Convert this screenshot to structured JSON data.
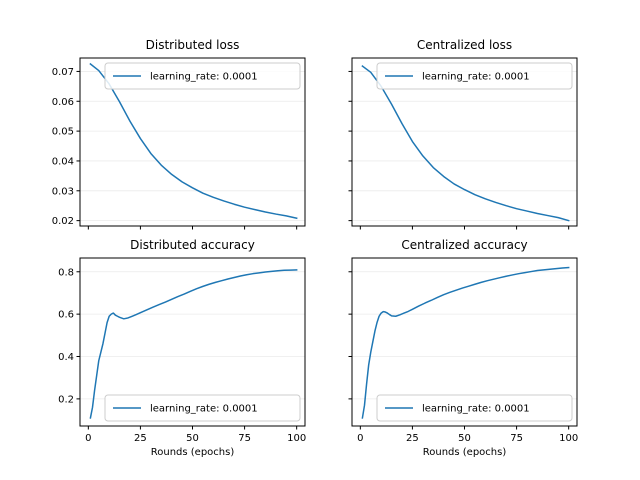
{
  "colors": {
    "series": "#1f77b4",
    "grid": "#ebebeb"
  },
  "chart_data": [
    {
      "type": "line",
      "title": "Distributed loss",
      "xlabel": "",
      "xlim": [
        -4,
        104
      ],
      "ylim": [
        0.0182,
        0.0745
      ],
      "xticks": [
        0,
        25,
        50,
        75,
        100
      ],
      "show_xtick_labels": false,
      "yticks": [
        0.02,
        0.03,
        0.04,
        0.05,
        0.06,
        0.07
      ],
      "ytick_labels": [
        "0.02",
        "0.03",
        "0.04",
        "0.05",
        "0.06",
        "0.07"
      ],
      "show_ytick_labels": true,
      "grid": true,
      "legend": "upper-right",
      "series": [
        {
          "name": "learning_rate: 0.0001",
          "points": [
            [
              1,
              0.0725
            ],
            [
              5,
              0.0703
            ],
            [
              10,
              0.0658
            ],
            [
              15,
              0.0598
            ],
            [
              20,
              0.0533
            ],
            [
              25,
              0.0475
            ],
            [
              30,
              0.0425
            ],
            [
              35,
              0.0386
            ],
            [
              40,
              0.0355
            ],
            [
              45,
              0.033
            ],
            [
              50,
              0.031
            ],
            [
              55,
              0.0292
            ],
            [
              60,
              0.0278
            ],
            [
              65,
              0.0266
            ],
            [
              70,
              0.0255
            ],
            [
              75,
              0.0245
            ],
            [
              80,
              0.0237
            ],
            [
              85,
              0.0229
            ],
            [
              90,
              0.0222
            ],
            [
              95,
              0.0216
            ],
            [
              100,
              0.0208
            ]
          ]
        }
      ]
    },
    {
      "type": "line",
      "title": "Centralized loss",
      "xlabel": "",
      "xlim": [
        -4,
        104
      ],
      "ylim": [
        0.0182,
        0.0745
      ],
      "xticks": [
        0,
        25,
        50,
        75,
        100
      ],
      "show_xtick_labels": false,
      "yticks": [
        0.02,
        0.03,
        0.04,
        0.05,
        0.06,
        0.07
      ],
      "ytick_labels": [
        "0.02",
        "0.03",
        "0.04",
        "0.05",
        "0.06",
        "0.07"
      ],
      "show_ytick_labels": false,
      "grid": true,
      "legend": "upper-right",
      "series": [
        {
          "name": "learning_rate: 0.0001",
          "points": [
            [
              1,
              0.0718
            ],
            [
              5,
              0.0697
            ],
            [
              10,
              0.065
            ],
            [
              15,
              0.059
            ],
            [
              20,
              0.0525
            ],
            [
              25,
              0.0465
            ],
            [
              30,
              0.0417
            ],
            [
              35,
              0.0378
            ],
            [
              40,
              0.0348
            ],
            [
              45,
              0.0323
            ],
            [
              50,
              0.0304
            ],
            [
              55,
              0.0287
            ],
            [
              60,
              0.0273
            ],
            [
              65,
              0.0261
            ],
            [
              70,
              0.025
            ],
            [
              75,
              0.024
            ],
            [
              80,
              0.0232
            ],
            [
              85,
              0.0224
            ],
            [
              90,
              0.0217
            ],
            [
              95,
              0.021
            ],
            [
              100,
              0.02
            ]
          ]
        }
      ]
    },
    {
      "type": "line",
      "title": "Distributed accuracy",
      "xlabel": "Rounds (epochs)",
      "xlim": [
        -4,
        104
      ],
      "ylim": [
        0.072,
        0.865
      ],
      "xticks": [
        0,
        25,
        50,
        75,
        100
      ],
      "xtick_labels": [
        "0",
        "25",
        "50",
        "75",
        "100"
      ],
      "show_xtick_labels": true,
      "yticks": [
        0.2,
        0.4,
        0.6,
        0.8
      ],
      "ytick_labels": [
        "0.2",
        "0.4",
        "0.6",
        "0.8"
      ],
      "show_ytick_labels": true,
      "grid": true,
      "legend": "lower-right",
      "series": [
        {
          "name": "learning_rate: 0.0001",
          "points": [
            [
              1,
              0.11
            ],
            [
              2,
              0.16
            ],
            [
              3,
              0.24
            ],
            [
              4,
              0.31
            ],
            [
              5,
              0.38
            ],
            [
              6,
              0.42
            ],
            [
              7,
              0.46
            ],
            [
              8,
              0.51
            ],
            [
              9,
              0.56
            ],
            [
              10,
              0.59
            ],
            [
              11,
              0.6
            ],
            [
              12,
              0.605
            ],
            [
              13,
              0.595
            ],
            [
              14,
              0.59
            ],
            [
              15,
              0.585
            ],
            [
              17,
              0.578
            ],
            [
              19,
              0.582
            ],
            [
              21,
              0.59
            ],
            [
              23,
              0.598
            ],
            [
              25,
              0.607
            ],
            [
              28,
              0.62
            ],
            [
              31,
              0.633
            ],
            [
              34,
              0.645
            ],
            [
              37,
              0.657
            ],
            [
              40,
              0.67
            ],
            [
              43,
              0.683
            ],
            [
              46,
              0.695
            ],
            [
              49,
              0.708
            ],
            [
              52,
              0.72
            ],
            [
              55,
              0.731
            ],
            [
              58,
              0.741
            ],
            [
              61,
              0.75
            ],
            [
              64,
              0.758
            ],
            [
              67,
              0.766
            ],
            [
              70,
              0.773
            ],
            [
              73,
              0.78
            ],
            [
              76,
              0.786
            ],
            [
              79,
              0.791
            ],
            [
              82,
              0.795
            ],
            [
              85,
              0.799
            ],
            [
              88,
              0.802
            ],
            [
              91,
              0.805
            ],
            [
              94,
              0.807
            ],
            [
              97,
              0.808
            ],
            [
              100,
              0.809
            ]
          ]
        }
      ]
    },
    {
      "type": "line",
      "title": "Centralized accuracy",
      "xlabel": "Rounds (epochs)",
      "xlim": [
        -4,
        104
      ],
      "ylim": [
        0.072,
        0.865
      ],
      "xticks": [
        0,
        25,
        50,
        75,
        100
      ],
      "xtick_labels": [
        "0",
        "25",
        "50",
        "75",
        "100"
      ],
      "show_xtick_labels": true,
      "yticks": [
        0.2,
        0.4,
        0.6,
        0.8
      ],
      "ytick_labels": [
        "0.2",
        "0.4",
        "0.6",
        "0.8"
      ],
      "show_ytick_labels": false,
      "grid": true,
      "legend": "lower-right",
      "series": [
        {
          "name": "learning_rate: 0.0001",
          "points": [
            [
              1,
              0.11
            ],
            [
              2,
              0.17
            ],
            [
              3,
              0.27
            ],
            [
              4,
              0.36
            ],
            [
              5,
              0.42
            ],
            [
              6,
              0.47
            ],
            [
              7,
              0.52
            ],
            [
              8,
              0.56
            ],
            [
              9,
              0.59
            ],
            [
              10,
              0.605
            ],
            [
              11,
              0.612
            ],
            [
              12,
              0.61
            ],
            [
              13,
              0.605
            ],
            [
              14,
              0.598
            ],
            [
              15,
              0.592
            ],
            [
              17,
              0.59
            ],
            [
              19,
              0.597
            ],
            [
              21,
              0.605
            ],
            [
              23,
              0.613
            ],
            [
              25,
              0.623
            ],
            [
              28,
              0.638
            ],
            [
              31,
              0.652
            ],
            [
              34,
              0.665
            ],
            [
              37,
              0.679
            ],
            [
              40,
              0.692
            ],
            [
              43,
              0.703
            ],
            [
              46,
              0.713
            ],
            [
              49,
              0.723
            ],
            [
              52,
              0.732
            ],
            [
              55,
              0.741
            ],
            [
              58,
              0.75
            ],
            [
              61,
              0.758
            ],
            [
              64,
              0.765
            ],
            [
              67,
              0.772
            ],
            [
              70,
              0.779
            ],
            [
              73,
              0.785
            ],
            [
              76,
              0.791
            ],
            [
              79,
              0.796
            ],
            [
              82,
              0.801
            ],
            [
              85,
              0.806
            ],
            [
              88,
              0.809
            ],
            [
              91,
              0.812
            ],
            [
              94,
              0.815
            ],
            [
              97,
              0.818
            ],
            [
              100,
              0.82
            ]
          ]
        }
      ]
    }
  ]
}
